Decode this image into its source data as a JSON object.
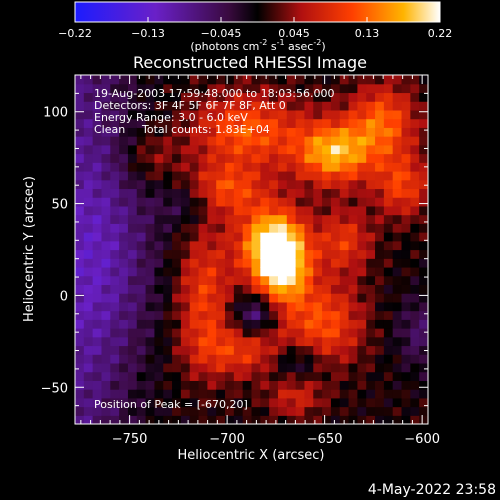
{
  "chart_data": {
    "type": "heatmap",
    "title": "Reconstructed RHESSI Image",
    "xlabel": "Heliocentric X (arcsec)",
    "ylabel": "Heliocentric Y (arcsec)",
    "xlim": [
      -778,
      -597
    ],
    "ylim": [
      -70,
      120
    ],
    "xticks": [
      -750,
      -700,
      -650,
      -600
    ],
    "yticks": [
      -50,
      0,
      50,
      100
    ],
    "colormap": "blue-purple-red-yellow-white",
    "colorbar": {
      "range": [
        -0.22,
        0.22
      ],
      "ticks": [
        "-0.22",
        "-0.13",
        "-0.045",
        "0.045",
        "0.13",
        "0.22"
      ],
      "unit_text": "(photons cm",
      "unit_exp1": "-2",
      "unit_mid": " s",
      "unit_exp2": "-1",
      "unit_mid2": " asec",
      "unit_exp3": "-2",
      "unit_end": ")"
    },
    "annotations": {
      "time_range": "19-Aug-2003 17:59:48.000 to 18:03:56.000",
      "detectors": "Detectors: 3F 4F 5F 6F 7F 8F, Att 0",
      "energy": "Energy Range: 3.0 - 6.0 keV",
      "method": "Clean",
      "counts": "Total counts: 1.83E+04",
      "peak": "Position of Peak = [-670,20]"
    },
    "peak": {
      "x": -670,
      "y": 20
    },
    "sources": [
      {
        "x": -672,
        "y": 18,
        "sx": 10,
        "sy": 16,
        "a": 0.22
      },
      {
        "x": -680,
        "y": 30,
        "sx": 12,
        "sy": 14,
        "a": 0.12
      },
      {
        "x": -645,
        "y": 78,
        "sx": 14,
        "sy": 12,
        "a": 0.17
      },
      {
        "x": -620,
        "y": 95,
        "sx": 12,
        "sy": 14,
        "a": 0.12
      },
      {
        "x": -610,
        "y": 60,
        "sx": 10,
        "sy": 12,
        "a": 0.1
      },
      {
        "x": -690,
        "y": 90,
        "sx": 20,
        "sy": 14,
        "a": 0.12
      },
      {
        "x": -700,
        "y": 58,
        "sx": 14,
        "sy": 10,
        "a": 0.1
      },
      {
        "x": -712,
        "y": 0,
        "sx": 10,
        "sy": 26,
        "a": 0.1
      },
      {
        "x": -690,
        "y": -30,
        "sx": 18,
        "sy": 10,
        "a": 0.09
      },
      {
        "x": -650,
        "y": -15,
        "sx": 14,
        "sy": 16,
        "a": 0.11
      },
      {
        "x": -640,
        "y": 30,
        "sx": 10,
        "sy": 12,
        "a": 0.09
      },
      {
        "x": -665,
        "y": -55,
        "sx": 10,
        "sy": 8,
        "a": 0.07
      },
      {
        "x": -740,
        "y": 75,
        "sx": 10,
        "sy": 10,
        "a": 0.05
      },
      {
        "x": -685,
        "y": -10,
        "sx": 8,
        "sy": 8,
        "a": -0.1
      },
      {
        "x": -665,
        "y": -35,
        "sx": 10,
        "sy": 8,
        "a": -0.08
      },
      {
        "x": -720,
        "y": 50,
        "sx": 10,
        "sy": 8,
        "a": -0.05
      },
      {
        "x": -760,
        "y": 20,
        "sx": 20,
        "sy": 40,
        "a": -0.06
      },
      {
        "x": -600,
        "y": -20,
        "sx": 10,
        "sy": 14,
        "a": -0.06
      }
    ]
  },
  "footer": {
    "date_stamp": "4-May-2022 23:58"
  }
}
